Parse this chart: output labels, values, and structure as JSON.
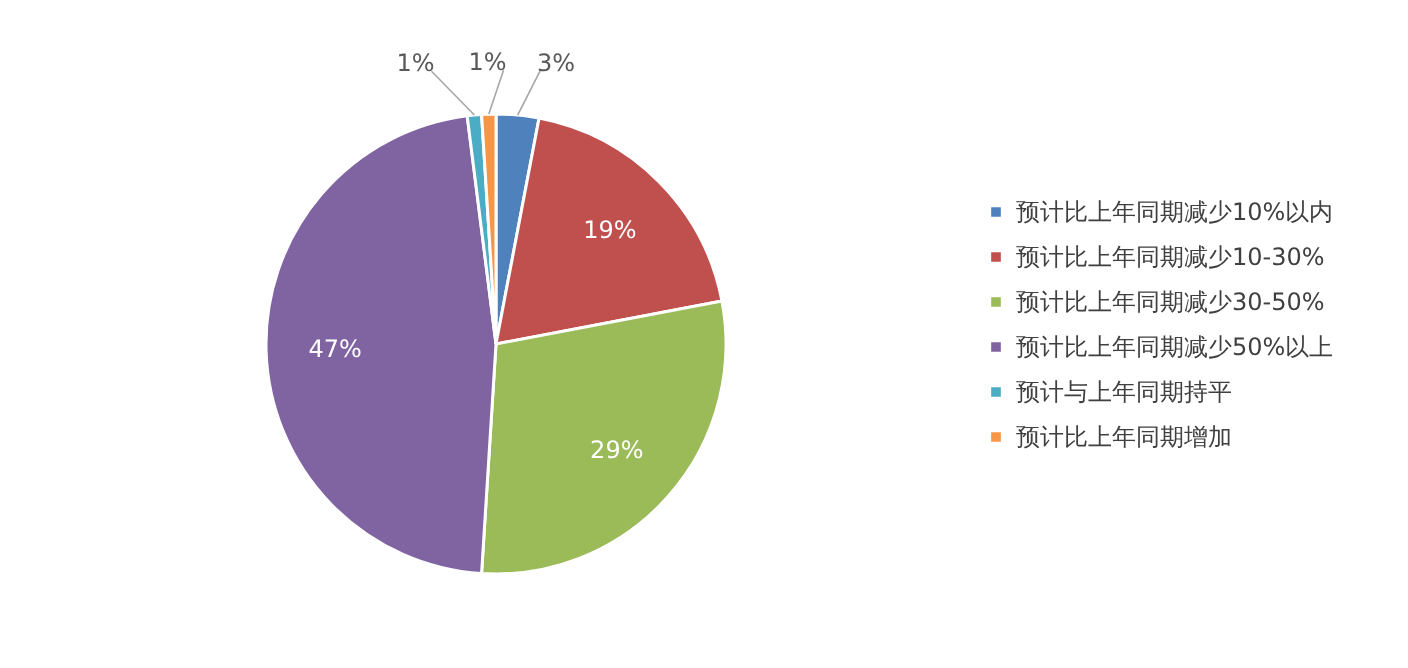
{
  "chart_data": {
    "type": "pie",
    "categories": [
      "预计比上年同期减少10%以内",
      "预计比上年同期减少10-30%",
      "预计比上年同期减少30-50%",
      "预计比上年同期减少50%以上",
      "预计与上年同期持平",
      "预计比上年同期增加"
    ],
    "values": [
      3,
      19,
      29,
      47,
      1,
      1
    ],
    "colors": [
      "#4f81bd",
      "#c0504d",
      "#9bbb59",
      "#8064a2",
      "#4bacc6",
      "#f79646"
    ],
    "value_labels": [
      "3%",
      "19%",
      "29%",
      "47%",
      "1%",
      "1%"
    ],
    "legend": "right"
  }
}
